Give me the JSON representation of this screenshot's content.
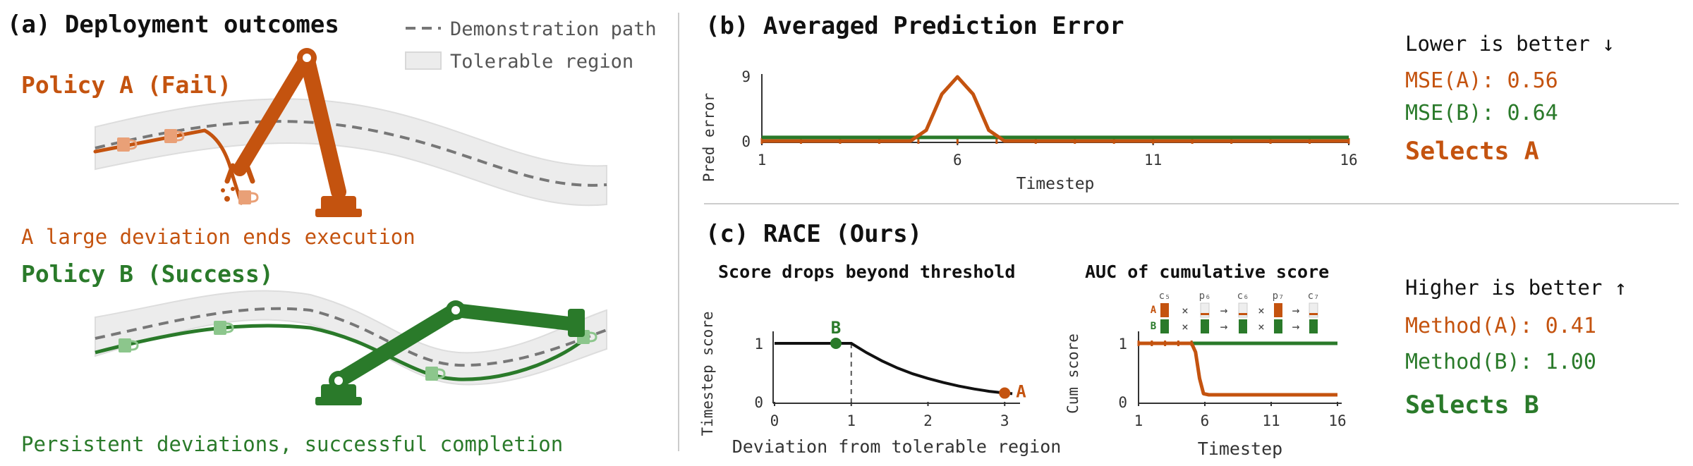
{
  "panel_a": {
    "title": "(a) Deployment outcomes",
    "legend": {
      "demo_path": "Demonstration path",
      "tolerable": "Tolerable region"
    },
    "policy_a": {
      "label": "Policy A (Fail)",
      "caption": "A large deviation ends execution"
    },
    "policy_b": {
      "label": "Policy B (Success)",
      "caption": "Persistent deviations, successful completion"
    }
  },
  "panel_b": {
    "title": "(b) Averaged Prediction Error",
    "lower_better": "Lower is better ↓",
    "mse_a": "MSE(A): 0.56",
    "mse_b": "MSE(B): 0.64",
    "verdict": "Selects A"
  },
  "panel_c": {
    "title": "(c) RACE (Ours)",
    "left_title": "Score drops beyond threshold",
    "right_title": "AUC of cumulative score",
    "higher_better": "Higher is better ↑",
    "method_a": "Method(A): 0.41",
    "method_b": "Method(B): 1.00",
    "verdict": "Selects B",
    "labels": {
      "a": "A",
      "b": "B"
    },
    "legend_tokens": {
      "c5": "c₅",
      "p6": "p₆",
      "c6": "c₆",
      "p7": "p₇",
      "c7": "c₇",
      "times": "×",
      "arrow": "→"
    }
  },
  "colors": {
    "policy_a": "#c4530f",
    "policy_b": "#2a7a2a",
    "demo": "#777777",
    "region": "#ececec"
  },
  "chart_data": [
    {
      "id": "pred_error",
      "type": "line",
      "xlabel": "Timestep",
      "ylabel": "Pred error",
      "xticks": [
        1,
        6,
        11,
        16
      ],
      "yticks": [
        0,
        9
      ],
      "xlim": [
        1,
        16
      ],
      "ylim": [
        0,
        9
      ],
      "series": [
        {
          "name": "A",
          "points": [
            [
              1,
              0
            ],
            [
              4.8,
              0
            ],
            [
              5.2,
              1.5
            ],
            [
              5.6,
              6.5
            ],
            [
              6,
              8.9
            ],
            [
              6.4,
              6.5
            ],
            [
              6.8,
              1.5
            ],
            [
              7.2,
              0
            ],
            [
              16,
              0
            ]
          ]
        },
        {
          "name": "B",
          "points": [
            [
              1,
              0.5
            ],
            [
              16,
              0.5
            ]
          ]
        }
      ]
    },
    {
      "id": "timestep_score",
      "type": "line",
      "xlabel": "Deviation from tolerable region",
      "ylabel": "Timestep score",
      "xticks": [
        0,
        1,
        2,
        3
      ],
      "yticks": [
        0,
        1
      ],
      "xlim": [
        0,
        3.2
      ],
      "ylim": [
        0,
        1
      ],
      "threshold_x": 1,
      "series": [
        {
          "name": "curve",
          "points": [
            [
              0,
              1
            ],
            [
              1,
              1
            ],
            [
              1.2,
              0.84
            ],
            [
              1.4,
              0.7
            ],
            [
              1.6,
              0.58
            ],
            [
              1.8,
              0.48
            ],
            [
              2,
              0.4
            ],
            [
              2.2,
              0.33
            ],
            [
              2.4,
              0.27
            ],
            [
              2.6,
              0.22
            ],
            [
              2.8,
              0.18
            ],
            [
              3,
              0.15
            ],
            [
              3.1,
              0.14
            ]
          ]
        }
      ],
      "markers": [
        {
          "label": "B",
          "x": 0.8,
          "y": 1
        },
        {
          "label": "A",
          "x": 3,
          "y": 0.15
        }
      ]
    },
    {
      "id": "cum_score",
      "type": "line",
      "xlabel": "Timestep",
      "ylabel": "Cum score",
      "xticks": [
        1,
        6,
        11,
        16
      ],
      "yticks": [
        0,
        1
      ],
      "xlim": [
        1,
        16
      ],
      "ylim": [
        0,
        1
      ],
      "series": [
        {
          "name": "A",
          "points": [
            [
              1,
              1
            ],
            [
              5,
              1
            ],
            [
              5.3,
              0.85
            ],
            [
              5.6,
              0.4
            ],
            [
              5.9,
              0.14
            ],
            [
              6.3,
              0.12
            ],
            [
              16,
              0.12
            ]
          ]
        },
        {
          "name": "B",
          "points": [
            [
              1,
              1
            ],
            [
              16,
              1
            ]
          ]
        }
      ]
    }
  ]
}
